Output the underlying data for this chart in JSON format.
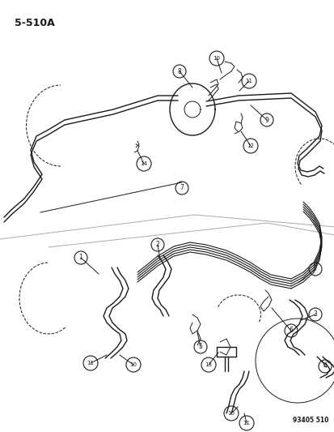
{
  "title": "5-510A",
  "watermark": "93405 510",
  "bg_color": "#ffffff",
  "fg_color": "#1a1a1a",
  "figsize": [
    4.14,
    5.33
  ],
  "dpi": 100
}
